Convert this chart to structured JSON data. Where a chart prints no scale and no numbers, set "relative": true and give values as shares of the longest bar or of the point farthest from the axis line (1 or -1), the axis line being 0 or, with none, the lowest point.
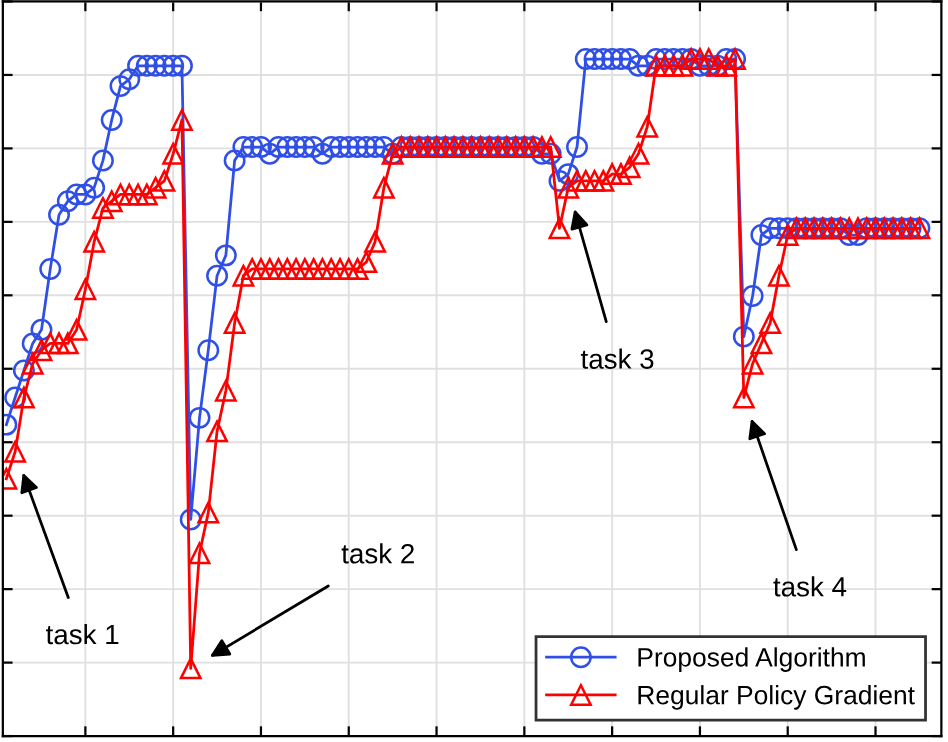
{
  "chart_data": {
    "type": "line",
    "relative": true,
    "grid": true,
    "legend": "bottom right",
    "categories": [
      null,
      null,
      null,
      null,
      null,
      null,
      null,
      null,
      null,
      null,
      null,
      null,
      null,
      null,
      null,
      null,
      null,
      null,
      null,
      null,
      null,
      null,
      null,
      null,
      null,
      null,
      null,
      null,
      null,
      null,
      null,
      null,
      null,
      null,
      null,
      null,
      null,
      null,
      null,
      null,
      null,
      null,
      null,
      null,
      null,
      null,
      null,
      null,
      null,
      null,
      null,
      null,
      null,
      null,
      null,
      null,
      null,
      null,
      null,
      null,
      null,
      null,
      null,
      null,
      null,
      null,
      null,
      null,
      null,
      null,
      null,
      null,
      null,
      null,
      null,
      null,
      null,
      null,
      null,
      null,
      null,
      null,
      null,
      null,
      null,
      null,
      null,
      null,
      null,
      null,
      null,
      null,
      null,
      null,
      null,
      null,
      null,
      null,
      null,
      null,
      null,
      null,
      null,
      null,
      null
    ],
    "series": [
      {
        "name": "Proposed Algorithm",
        "color": "#2f4fe6",
        "marker": "circle",
        "line_style": "solid",
        "values": [
          0.46,
          0.5,
          0.54,
          0.58,
          0.6,
          0.69,
          0.77,
          0.79,
          0.8,
          0.8,
          0.81,
          0.85,
          0.91,
          0.96,
          0.97,
          0.99,
          0.99,
          0.99,
          0.99,
          0.99,
          0.99,
          0.32,
          0.47,
          0.57,
          0.68,
          0.71,
          0.85,
          0.87,
          0.87,
          0.87,
          0.86,
          0.87,
          0.87,
          0.87,
          0.87,
          0.87,
          0.86,
          0.87,
          0.87,
          0.87,
          0.87,
          0.87,
          0.87,
          0.87,
          0.86,
          0.87,
          0.87,
          0.87,
          0.87,
          0.87,
          0.87,
          0.87,
          0.87,
          0.87,
          0.87,
          0.87,
          0.87,
          0.87,
          0.87,
          0.87,
          0.87,
          0.86,
          0.86,
          0.82,
          0.83,
          0.87,
          1.0,
          1.0,
          1.0,
          1.0,
          1.0,
          1.0,
          0.99,
          0.99,
          1.0,
          1.0,
          1.0,
          1.0,
          1.0,
          0.99,
          0.99,
          0.99,
          1.0,
          1.0,
          0.59,
          0.65,
          0.74,
          0.75,
          0.75,
          0.75,
          0.75,
          0.75,
          0.75,
          0.75,
          0.75,
          0.75,
          0.74,
          0.74,
          0.75,
          0.75,
          0.75,
          0.75,
          0.75,
          0.75,
          0.75
        ]
      },
      {
        "name": "Regular Policy Gradient",
        "color": "#ff0000",
        "marker": "triangle",
        "line_style": "solid",
        "values": [
          0.38,
          0.42,
          0.5,
          0.55,
          0.57,
          0.58,
          0.58,
          0.58,
          0.6,
          0.66,
          0.73,
          0.78,
          0.79,
          0.8,
          0.8,
          0.8,
          0.8,
          0.81,
          0.82,
          0.86,
          0.91,
          0.1,
          0.27,
          0.33,
          0.45,
          0.51,
          0.61,
          0.68,
          0.69,
          0.69,
          0.69,
          0.69,
          0.69,
          0.69,
          0.69,
          0.69,
          0.69,
          0.69,
          0.69,
          0.69,
          0.69,
          0.7,
          0.73,
          0.81,
          0.86,
          0.87,
          0.87,
          0.87,
          0.87,
          0.87,
          0.87,
          0.87,
          0.87,
          0.87,
          0.87,
          0.87,
          0.87,
          0.87,
          0.87,
          0.87,
          0.87,
          0.87,
          0.87,
          0.75,
          0.81,
          0.82,
          0.82,
          0.82,
          0.82,
          0.83,
          0.83,
          0.84,
          0.86,
          0.9,
          0.99,
          0.99,
          0.99,
          0.99,
          1.0,
          1.0,
          1.0,
          0.99,
          0.99,
          1.0,
          0.5,
          0.55,
          0.58,
          0.61,
          0.68,
          0.74,
          0.75,
          0.75,
          0.75,
          0.75,
          0.75,
          0.75,
          0.75,
          0.75,
          0.75,
          0.75,
          0.75,
          0.75,
          0.75,
          0.75,
          0.75
        ]
      }
    ],
    "annotations": [
      "task 1",
      "task 2",
      "task 3",
      "task 4"
    ]
  }
}
